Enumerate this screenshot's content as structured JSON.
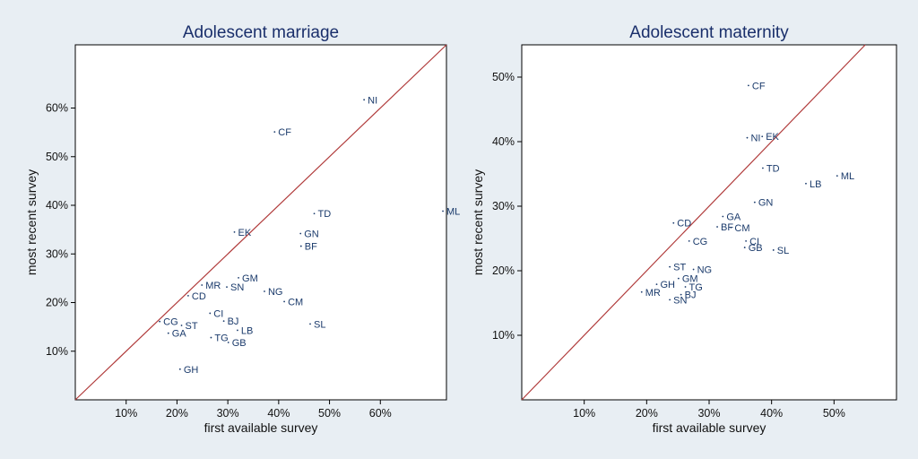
{
  "chart_data": [
    {
      "type": "scatter",
      "title": "Adolescent marriage",
      "xlabel": "first available survey",
      "ylabel": "most recent survey",
      "xlim": [
        0,
        73
      ],
      "ylim": [
        0,
        73
      ],
      "xticks": [
        10,
        20,
        30,
        40,
        50,
        60
      ],
      "yticks": [
        10,
        20,
        30,
        40,
        50,
        60
      ],
      "tick_format": "{v}%",
      "reference_line": "y = x",
      "line_color": "#b03a3a",
      "point_color": "#1a3a6b",
      "points": [
        {
          "label": "NI",
          "x": 56.8,
          "y": 61.7
        },
        {
          "label": "CF",
          "x": 39.2,
          "y": 55.1
        },
        {
          "label": "ML",
          "x": 72.3,
          "y": 38.8
        },
        {
          "label": "TD",
          "x": 47.0,
          "y": 38.3
        },
        {
          "label": "EK",
          "x": 31.3,
          "y": 34.5
        },
        {
          "label": "GN",
          "x": 44.3,
          "y": 34.2
        },
        {
          "label": "BF",
          "x": 44.4,
          "y": 31.6
        },
        {
          "label": "GM",
          "x": 32.1,
          "y": 25.1
        },
        {
          "label": "MR",
          "x": 24.9,
          "y": 23.6
        },
        {
          "label": "SN",
          "x": 29.8,
          "y": 23.2
        },
        {
          "label": "NG",
          "x": 37.2,
          "y": 22.3
        },
        {
          "label": "CD",
          "x": 22.2,
          "y": 21.4
        },
        {
          "label": "CM",
          "x": 41.1,
          "y": 20.2
        },
        {
          "label": "CI",
          "x": 26.5,
          "y": 17.8
        },
        {
          "label": "BJ",
          "x": 29.2,
          "y": 16.2
        },
        {
          "label": "CG",
          "x": 16.6,
          "y": 16.1
        },
        {
          "label": "ST",
          "x": 20.9,
          "y": 15.3
        },
        {
          "label": "SL",
          "x": 46.2,
          "y": 15.6
        },
        {
          "label": "LB",
          "x": 31.9,
          "y": 14.3
        },
        {
          "label": "GA",
          "x": 18.3,
          "y": 13.7
        },
        {
          "label": "TG",
          "x": 26.7,
          "y": 12.8
        },
        {
          "label": "GB",
          "x": 30.1,
          "y": 11.8
        },
        {
          "label": "GH",
          "x": 20.6,
          "y": 6.3
        }
      ]
    },
    {
      "type": "scatter",
      "title": "Adolescent maternity",
      "xlabel": "first available survey",
      "ylabel": "most recent survey",
      "xlim": [
        0,
        60
      ],
      "ylim": [
        0,
        55
      ],
      "xticks": [
        10,
        20,
        30,
        40,
        50
      ],
      "yticks": [
        10,
        20,
        30,
        40,
        50
      ],
      "tick_format": "{v}%",
      "reference_line": "y = x",
      "line_color": "#b03a3a",
      "point_color": "#1a3a6b",
      "points": [
        {
          "label": "CF",
          "x": 36.3,
          "y": 48.7
        },
        {
          "label": "NI",
          "x": 36.1,
          "y": 40.6
        },
        {
          "label": "EK",
          "x": 38.5,
          "y": 40.8
        },
        {
          "label": "TD",
          "x": 38.6,
          "y": 35.9
        },
        {
          "label": "LB",
          "x": 45.5,
          "y": 33.5
        },
        {
          "label": "ML",
          "x": 50.5,
          "y": 34.7
        },
        {
          "label": "GA",
          "x": 32.2,
          "y": 28.4
        },
        {
          "label": "GN",
          "x": 37.3,
          "y": 30.6
        },
        {
          "label": "CD",
          "x": 24.3,
          "y": 27.4
        },
        {
          "label": "BF",
          "x": 31.3,
          "y": 26.8
        },
        {
          "label": "CM",
          "x": 33.5,
          "y": 26.7
        },
        {
          "label": "CG",
          "x": 26.8,
          "y": 24.6
        },
        {
          "label": "GB",
          "x": 35.7,
          "y": 23.6
        },
        {
          "label": "CI",
          "x": 35.9,
          "y": 24.6
        },
        {
          "label": "SL",
          "x": 40.3,
          "y": 23.2
        },
        {
          "label": "ST",
          "x": 23.7,
          "y": 20.6
        },
        {
          "label": "NG",
          "x": 27.5,
          "y": 20.2
        },
        {
          "label": "GM",
          "x": 25.1,
          "y": 18.8
        },
        {
          "label": "GH",
          "x": 21.6,
          "y": 17.9
        },
        {
          "label": "TG",
          "x": 26.2,
          "y": 17.5
        },
        {
          "label": "MR",
          "x": 19.2,
          "y": 16.7
        },
        {
          "label": "BJ",
          "x": 25.5,
          "y": 16.3
        },
        {
          "label": "SN",
          "x": 23.7,
          "y": 15.5
        }
      ]
    }
  ]
}
